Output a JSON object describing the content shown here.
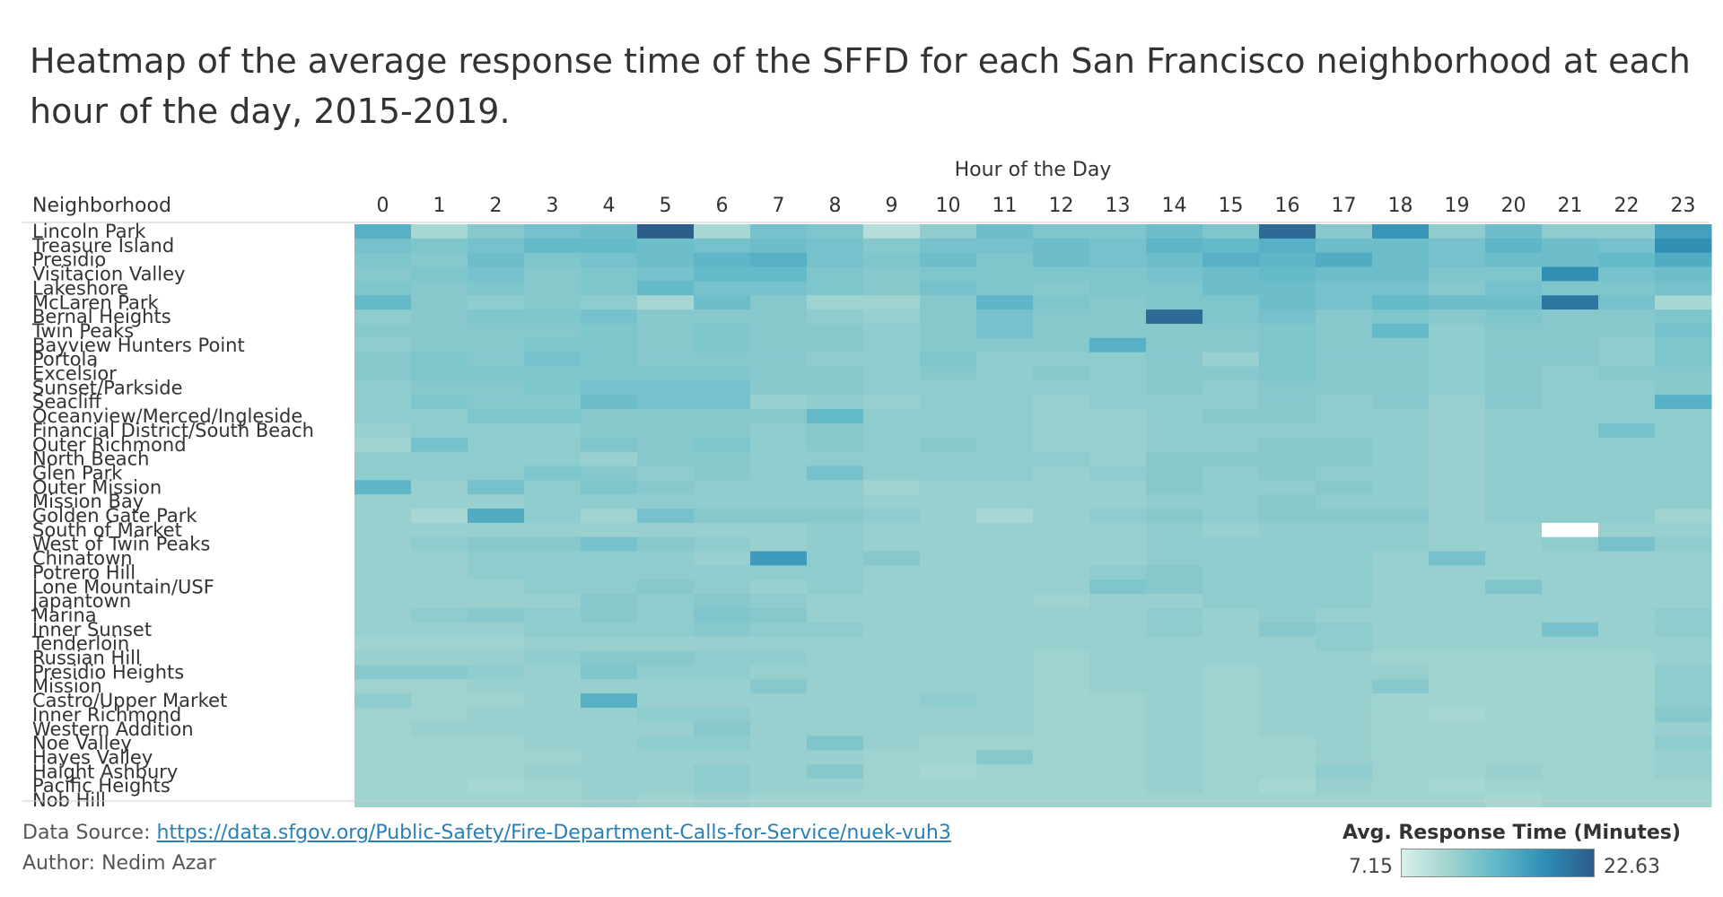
{
  "title": "Heatmap of the average response time of the SFFD for each San Francisco neighborhood at each hour of the day, 2015-2019.",
  "footer": {
    "source_prefix": "Data Source: ",
    "source_link": "https://data.sfgov.org/Public-Safety/Fire-Department-Calls-for-Service/nuek-vuh3",
    "author": "Author: Nedim Azar"
  },
  "legend": {
    "title": "Avg. Response Time (Minutes)",
    "min_label": "7.15",
    "max_label": "22.63",
    "colors": [
      "#d8f0ea",
      "#9fd3cf",
      "#5fb7c9",
      "#2f8db4",
      "#2c5b8a"
    ]
  },
  "chart_data": {
    "type": "heatmap",
    "title": "Heatmap of the average response time of the SFFD for each San Francisco neighborhood at each hour of the day, 2015-2019.",
    "xlabel": "Hour of the Day",
    "ylabel": "Neighborhood",
    "value_label": "Avg. Response Time (Minutes)",
    "color_range": [
      7.15,
      22.63
    ],
    "x": [
      "0",
      "1",
      "2",
      "3",
      "4",
      "5",
      "6",
      "7",
      "8",
      "9",
      "10",
      "11",
      "12",
      "13",
      "14",
      "15",
      "16",
      "17",
      "18",
      "19",
      "20",
      "21",
      "22",
      "23"
    ],
    "y": [
      "Lincoln Park",
      "Treasure Island",
      "Presidio",
      "Visitacion Valley",
      "Lakeshore",
      "McLaren Park",
      "Bernal Heights",
      "Twin Peaks",
      "Bayview Hunters Point",
      "Portola",
      "Excelsior",
      "Sunset/Parkside",
      "Seacliff",
      "Oceanview/Merced/Ingleside",
      "Financial District/South Beach",
      "Outer Richmond",
      "North Beach",
      "Glen Park",
      "Outer Mission",
      "Mission Bay",
      "Golden Gate Park",
      "South of Market",
      "West of Twin Peaks",
      "Chinatown",
      "Potrero Hill",
      "Lone Mountain/USF",
      "Japantown",
      "Marina",
      "Inner Sunset",
      "Tenderloin",
      "Russian Hill",
      "Presidio Heights",
      "Mission",
      "Castro/Upper Market",
      "Inner Richmond",
      "Western Addition",
      "Noe Valley",
      "Hayes Valley",
      "Haight Ashbury",
      "Pacific Heights",
      "Nob Hill"
    ],
    "values": [
      [
        15.5,
        10.5,
        12.5,
        13.5,
        14.0,
        22.5,
        10.5,
        13.5,
        13.0,
        9.5,
        12.0,
        14.0,
        13.0,
        13.0,
        14.0,
        13.0,
        21.5,
        12.5,
        18.0,
        12.0,
        14.0,
        12.0,
        12.0,
        17.0
      ],
      [
        13.5,
        13.0,
        13.5,
        14.5,
        14.5,
        14.0,
        13.5,
        14.0,
        13.5,
        12.5,
        13.5,
        13.5,
        14.0,
        13.5,
        15.0,
        14.5,
        15.5,
        14.0,
        14.0,
        13.5,
        15.0,
        14.0,
        13.5,
        18.5
      ],
      [
        13.0,
        12.5,
        14.0,
        13.0,
        13.5,
        14.0,
        15.0,
        15.5,
        13.5,
        13.0,
        14.0,
        13.0,
        14.0,
        13.5,
        14.0,
        15.5,
        15.0,
        16.0,
        14.0,
        13.5,
        14.0,
        14.0,
        14.5,
        16.0
      ],
      [
        12.5,
        13.0,
        13.5,
        12.5,
        13.0,
        13.5,
        14.5,
        14.5,
        13.0,
        12.5,
        13.0,
        13.0,
        13.0,
        13.0,
        13.5,
        14.0,
        14.5,
        14.0,
        14.0,
        13.0,
        13.0,
        18.5,
        13.5,
        14.0
      ],
      [
        13.0,
        12.5,
        13.0,
        12.5,
        13.0,
        14.5,
        13.5,
        13.5,
        13.0,
        12.5,
        13.5,
        13.0,
        12.5,
        13.0,
        13.0,
        14.0,
        14.0,
        13.5,
        13.5,
        12.5,
        13.5,
        13.0,
        13.0,
        13.5
      ],
      [
        14.5,
        12.5,
        12.0,
        12.5,
        12.0,
        10.5,
        14.0,
        12.5,
        11.0,
        11.0,
        12.5,
        15.0,
        13.0,
        12.5,
        13.0,
        13.0,
        14.0,
        13.5,
        14.5,
        14.0,
        14.0,
        20.5,
        13.5,
        10.5
      ],
      [
        12.0,
        12.5,
        13.0,
        13.0,
        13.5,
        12.5,
        12.5,
        12.5,
        12.0,
        11.5,
        12.5,
        13.5,
        12.5,
        12.5,
        21.5,
        13.0,
        13.5,
        12.5,
        13.0,
        12.5,
        13.0,
        12.5,
        12.5,
        13.0
      ],
      [
        12.5,
        12.5,
        12.5,
        12.5,
        13.0,
        12.5,
        13.0,
        12.5,
        12.5,
        12.0,
        12.5,
        13.5,
        12.5,
        12.5,
        12.5,
        12.5,
        13.0,
        12.5,
        14.5,
        12.0,
        12.5,
        12.5,
        12.5,
        13.5
      ],
      [
        12.0,
        12.5,
        12.5,
        13.0,
        13.0,
        12.5,
        13.0,
        12.5,
        12.5,
        12.0,
        12.5,
        12.5,
        12.5,
        15.5,
        12.5,
        12.5,
        13.0,
        12.5,
        12.5,
        12.0,
        12.5,
        12.5,
        12.0,
        13.0
      ],
      [
        12.5,
        13.0,
        12.5,
        13.5,
        13.0,
        12.5,
        12.5,
        12.5,
        12.0,
        12.0,
        13.0,
        12.0,
        12.0,
        12.0,
        12.5,
        11.5,
        13.0,
        12.5,
        12.5,
        12.0,
        12.5,
        12.5,
        12.0,
        13.0
      ],
      [
        12.5,
        13.0,
        13.0,
        13.0,
        13.0,
        13.0,
        13.0,
        12.5,
        12.5,
        12.0,
        12.5,
        12.0,
        12.5,
        12.0,
        12.5,
        12.5,
        13.0,
        12.5,
        12.5,
        12.0,
        12.5,
        12.0,
        12.5,
        12.5
      ],
      [
        12.0,
        12.5,
        12.5,
        13.0,
        13.5,
        13.5,
        13.5,
        12.5,
        12.5,
        12.0,
        12.0,
        12.0,
        12.0,
        12.0,
        12.5,
        12.0,
        12.5,
        12.5,
        12.5,
        12.0,
        12.5,
        12.0,
        12.0,
        12.5
      ],
      [
        12.0,
        13.0,
        12.5,
        12.5,
        14.0,
        13.5,
        13.5,
        11.5,
        12.0,
        11.5,
        12.0,
        12.0,
        11.5,
        12.0,
        12.0,
        12.0,
        12.5,
        12.0,
        12.5,
        11.5,
        12.5,
        12.0,
        12.0,
        15.5
      ],
      [
        12.0,
        12.0,
        13.0,
        13.0,
        12.5,
        12.5,
        12.5,
        12.5,
        14.5,
        12.0,
        12.0,
        12.0,
        11.5,
        11.5,
        12.0,
        12.5,
        12.5,
        12.0,
        12.0,
        11.5,
        12.0,
        12.0,
        12.0,
        12.0
      ],
      [
        11.5,
        12.0,
        12.0,
        12.0,
        12.5,
        12.5,
        12.5,
        12.0,
        12.5,
        12.0,
        12.0,
        12.0,
        11.5,
        11.5,
        12.0,
        12.0,
        12.0,
        12.0,
        12.0,
        11.5,
        12.0,
        12.0,
        13.5,
        12.0
      ],
      [
        11.0,
        13.5,
        12.0,
        12.0,
        13.0,
        12.5,
        13.0,
        12.0,
        12.5,
        12.0,
        12.5,
        12.0,
        11.5,
        11.5,
        12.0,
        12.0,
        12.5,
        12.5,
        12.0,
        11.5,
        12.0,
        12.0,
        12.0,
        12.0
      ],
      [
        12.0,
        12.0,
        12.0,
        12.0,
        11.5,
        12.5,
        12.5,
        12.0,
        12.0,
        12.0,
        12.0,
        12.0,
        12.0,
        11.5,
        12.5,
        12.5,
        12.5,
        12.5,
        12.0,
        11.5,
        12.0,
        12.0,
        12.0,
        12.0
      ],
      [
        12.0,
        12.0,
        12.0,
        13.0,
        12.5,
        12.0,
        12.5,
        12.0,
        13.5,
        12.0,
        12.0,
        12.0,
        11.5,
        12.0,
        12.5,
        12.0,
        12.5,
        12.0,
        12.0,
        11.5,
        12.0,
        12.0,
        12.0,
        12.0
      ],
      [
        15.0,
        11.5,
        13.5,
        12.0,
        13.0,
        12.5,
        12.0,
        12.0,
        12.0,
        11.0,
        11.5,
        11.5,
        11.5,
        11.5,
        12.5,
        12.0,
        12.0,
        12.5,
        12.0,
        11.5,
        12.0,
        12.0,
        12.0,
        12.0
      ],
      [
        11.5,
        11.5,
        11.5,
        12.0,
        12.0,
        12.0,
        12.0,
        12.0,
        12.0,
        11.5,
        11.5,
        11.5,
        11.5,
        11.5,
        12.0,
        12.0,
        12.5,
        12.0,
        12.0,
        11.5,
        12.0,
        12.0,
        12.0,
        12.0
      ],
      [
        11.5,
        10.5,
        16.0,
        12.0,
        11.0,
        13.5,
        12.5,
        12.5,
        12.5,
        12.0,
        11.5,
        10.5,
        11.5,
        12.0,
        12.5,
        12.0,
        12.5,
        12.5,
        12.5,
        11.5,
        12.0,
        12.0,
        12.0,
        11.0
      ],
      [
        11.5,
        11.5,
        11.5,
        11.5,
        11.5,
        11.5,
        11.5,
        11.5,
        12.0,
        11.5,
        11.5,
        11.5,
        11.5,
        11.5,
        12.0,
        11.5,
        12.0,
        12.0,
        12.0,
        11.5,
        11.5,
        7.15,
        11.5,
        11.5
      ],
      [
        11.5,
        12.0,
        12.5,
        12.5,
        13.5,
        12.5,
        12.0,
        11.5,
        12.0,
        11.5,
        11.5,
        11.5,
        11.5,
        11.5,
        12.0,
        12.0,
        12.0,
        12.0,
        12.0,
        11.5,
        11.5,
        12.0,
        13.5,
        12.0
      ],
      [
        11.5,
        11.5,
        12.0,
        12.0,
        12.0,
        12.0,
        11.5,
        17.5,
        12.0,
        12.5,
        11.5,
        11.5,
        11.5,
        11.5,
        12.0,
        12.0,
        12.0,
        12.0,
        11.5,
        13.5,
        11.5,
        11.5,
        11.5,
        11.5
      ],
      [
        11.5,
        11.5,
        12.0,
        12.0,
        12.0,
        12.0,
        12.0,
        12.0,
        12.0,
        11.5,
        11.5,
        11.5,
        11.5,
        12.0,
        12.5,
        12.0,
        12.0,
        12.0,
        11.5,
        11.5,
        11.5,
        11.5,
        11.5,
        11.5
      ],
      [
        11.5,
        11.5,
        11.5,
        12.0,
        12.0,
        12.5,
        12.0,
        11.5,
        12.0,
        11.5,
        11.5,
        11.5,
        11.5,
        13.0,
        12.5,
        12.0,
        12.0,
        12.0,
        11.5,
        11.5,
        13.0,
        11.5,
        11.5,
        11.5
      ],
      [
        11.5,
        11.5,
        11.5,
        11.5,
        12.5,
        12.0,
        12.5,
        12.0,
        11.5,
        11.5,
        11.5,
        11.5,
        11.0,
        11.5,
        11.5,
        12.0,
        12.0,
        12.0,
        11.5,
        11.5,
        11.5,
        11.5,
        11.5,
        11.5
      ],
      [
        11.5,
        12.0,
        12.5,
        12.0,
        12.5,
        12.0,
        13.0,
        12.5,
        11.5,
        11.5,
        11.5,
        11.5,
        11.5,
        11.5,
        12.0,
        11.5,
        12.0,
        11.5,
        11.5,
        11.5,
        11.5,
        11.5,
        11.5,
        12.0
      ],
      [
        11.5,
        11.5,
        11.5,
        12.0,
        12.0,
        12.0,
        12.5,
        12.0,
        12.0,
        11.5,
        11.5,
        11.5,
        11.5,
        11.5,
        12.0,
        11.5,
        12.5,
        12.0,
        11.5,
        11.5,
        11.5,
        13.5,
        11.5,
        12.0
      ],
      [
        11.0,
        11.0,
        11.0,
        11.5,
        11.5,
        11.5,
        11.5,
        11.5,
        11.5,
        11.5,
        11.5,
        11.5,
        11.5,
        11.5,
        11.5,
        11.5,
        11.5,
        12.0,
        11.5,
        11.5,
        11.5,
        11.5,
        11.5,
        11.5
      ],
      [
        11.5,
        11.5,
        11.5,
        12.0,
        12.5,
        12.5,
        12.0,
        12.0,
        11.5,
        11.5,
        11.5,
        11.5,
        11.0,
        11.5,
        11.5,
        11.5,
        11.5,
        11.5,
        11.0,
        11.0,
        11.0,
        11.0,
        11.0,
        11.5
      ],
      [
        12.5,
        12.5,
        12.0,
        11.5,
        13.0,
        12.0,
        12.0,
        11.5,
        11.5,
        11.5,
        11.5,
        11.5,
        11.0,
        11.5,
        11.5,
        11.0,
        11.5,
        11.5,
        11.5,
        11.0,
        11.0,
        11.0,
        11.0,
        12.0
      ],
      [
        11.0,
        11.0,
        11.5,
        11.5,
        11.5,
        11.5,
        11.5,
        12.5,
        11.5,
        11.5,
        11.5,
        11.5,
        11.0,
        11.5,
        11.5,
        11.0,
        11.5,
        11.5,
        12.5,
        11.0,
        11.0,
        11.0,
        11.0,
        12.0
      ],
      [
        12.0,
        11.0,
        11.0,
        11.5,
        15.5,
        11.5,
        11.5,
        11.5,
        11.5,
        11.5,
        12.0,
        11.5,
        11.0,
        11.0,
        11.5,
        11.0,
        11.5,
        11.5,
        11.0,
        11.0,
        11.0,
        11.0,
        11.0,
        12.0
      ],
      [
        11.0,
        11.0,
        11.5,
        11.5,
        11.5,
        12.0,
        12.0,
        11.5,
        11.5,
        11.5,
        11.5,
        11.5,
        11.0,
        11.0,
        11.5,
        11.0,
        11.5,
        11.5,
        11.0,
        10.5,
        11.0,
        11.0,
        11.0,
        12.5
      ],
      [
        11.0,
        11.5,
        11.5,
        11.5,
        11.5,
        11.5,
        12.5,
        11.5,
        11.5,
        11.5,
        11.5,
        11.5,
        11.0,
        11.0,
        11.5,
        11.0,
        11.5,
        11.5,
        11.0,
        11.0,
        11.0,
        11.0,
        11.0,
        11.5
      ],
      [
        11.0,
        11.0,
        11.0,
        11.5,
        11.5,
        12.0,
        12.0,
        11.5,
        13.0,
        11.5,
        11.0,
        11.0,
        11.0,
        11.0,
        11.5,
        11.0,
        11.0,
        11.5,
        11.0,
        11.0,
        11.0,
        11.0,
        11.0,
        12.0
      ],
      [
        11.0,
        11.0,
        11.0,
        11.0,
        11.5,
        11.5,
        11.5,
        11.5,
        11.5,
        11.0,
        11.0,
        12.5,
        11.0,
        11.0,
        11.5,
        11.0,
        11.0,
        11.5,
        11.0,
        11.0,
        11.0,
        11.0,
        11.0,
        11.5
      ],
      [
        11.0,
        11.0,
        11.0,
        11.5,
        11.5,
        11.5,
        12.0,
        11.5,
        12.5,
        11.0,
        10.5,
        11.0,
        11.0,
        11.0,
        11.5,
        11.0,
        11.0,
        12.0,
        11.0,
        11.0,
        11.5,
        11.0,
        11.0,
        11.5
      ],
      [
        11.0,
        11.0,
        10.5,
        11.0,
        11.5,
        11.5,
        12.0,
        11.5,
        11.5,
        11.0,
        11.0,
        11.0,
        11.0,
        11.0,
        11.5,
        11.0,
        10.5,
        11.5,
        11.0,
        10.5,
        11.0,
        11.0,
        11.0,
        11.0
      ],
      [
        11.0,
        11.0,
        11.0,
        11.0,
        11.5,
        11.0,
        11.5,
        11.0,
        11.0,
        11.0,
        11.0,
        11.0,
        11.0,
        11.0,
        11.0,
        11.0,
        11.0,
        11.0,
        11.0,
        11.0,
        10.5,
        11.0,
        11.0,
        11.0
      ]
    ]
  }
}
